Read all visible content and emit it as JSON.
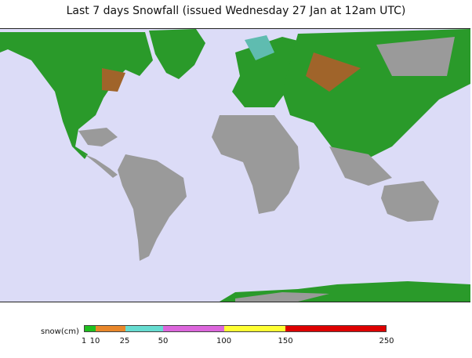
{
  "title": "Last 7 days Snowfall (issued Wednesday 27 Jan at 12am UTC)",
  "legend": {
    "label": "snow(cm)",
    "ticks": [
      "1",
      "10",
      "25",
      "50",
      "100",
      "150",
      "250"
    ],
    "bands": [
      {
        "from": 1,
        "to": 10,
        "color": "#1fbf1f"
      },
      {
        "from": 10,
        "to": 25,
        "color": "#e8862a"
      },
      {
        "from": 25,
        "to": 50,
        "color": "#66dcd0"
      },
      {
        "from": 50,
        "to": 100,
        "color": "#dc66dc"
      },
      {
        "from": 100,
        "to": 150,
        "color": "#ffff33"
      },
      {
        "from": 150,
        "to": 250,
        "color": "#dd0000"
      }
    ]
  },
  "colors": {
    "ocean": "#dcdcf7",
    "land": "#9a9a9a",
    "snow_light": "#2a9a2a",
    "snow_medium": "#a0642a",
    "snow_deep": "#5fbcb0"
  }
}
